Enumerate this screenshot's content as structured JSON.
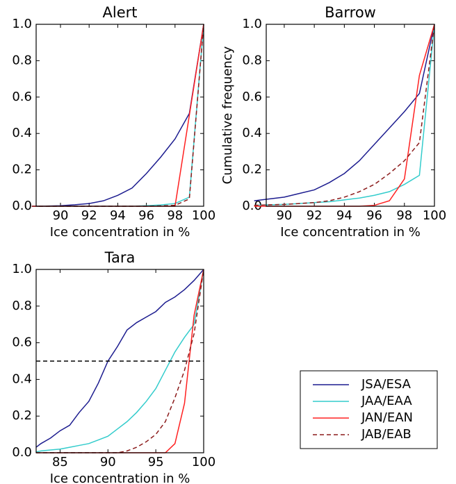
{
  "chart_data": [
    {
      "type": "line",
      "title": "Alert",
      "xlabel": "Ice concentration in %",
      "x": [
        88,
        89,
        90,
        91,
        92,
        93,
        94,
        95,
        96,
        97,
        98,
        99,
        100
      ],
      "series": [
        {
          "color": "#1c1c8f",
          "values": [
            0,
            0.001,
            0.003,
            0.008,
            0.015,
            0.03,
            0.06,
            0.1,
            0.18,
            0.27,
            0.37,
            0.51,
            1.0
          ]
        },
        {
          "color": "#33cccc",
          "values": [
            0,
            0,
            0,
            0,
            0,
            0,
            0,
            0,
            0.003,
            0.007,
            0.015,
            0.05,
            1.0
          ]
        },
        {
          "color": "#ff2020",
          "values": [
            0,
            0,
            0,
            0,
            0,
            0,
            0,
            0,
            0,
            0,
            0.0,
            0.5,
            1.0
          ]
        },
        {
          "color": "#8b1a1a",
          "dashed": true,
          "values": [
            0,
            0,
            0,
            0,
            0,
            0,
            0,
            0,
            0,
            0.002,
            0.005,
            0.04,
            1.0
          ]
        }
      ],
      "xlim": [
        88.3,
        100
      ],
      "xticks": [
        90,
        92,
        94,
        96,
        98,
        100
      ],
      "ylim": [
        0,
        1
      ],
      "yticks": [
        {
          "value": 0,
          "label": "0.0"
        },
        0.2,
        0.4,
        0.6,
        0.8,
        {
          "value": 1,
          "label": "1.0"
        }
      ]
    },
    {
      "type": "line",
      "title": "Barrow",
      "xlabel": "Ice concentration in %",
      "ylabel": "Cumulative frequency",
      "x": [
        88,
        89,
        90,
        91,
        92,
        93,
        94,
        95,
        96,
        97,
        98,
        99,
        100
      ],
      "series": [
        {
          "color": "#1c1c8f",
          "values": [
            0.03,
            0.04,
            0.05,
            0.07,
            0.09,
            0.13,
            0.18,
            0.25,
            0.34,
            0.43,
            0.52,
            0.62,
            1.0
          ]
        },
        {
          "color": "#33cccc",
          "values": [
            0.005,
            0.008,
            0.01,
            0.015,
            0.02,
            0.025,
            0.035,
            0.045,
            0.06,
            0.08,
            0.12,
            0.17,
            1.0
          ]
        },
        {
          "color": "#ff2020",
          "values": [
            0,
            0,
            0,
            0,
            0,
            0,
            0,
            0,
            0.005,
            0.03,
            0.15,
            0.72,
            1.0
          ]
        },
        {
          "color": "#8b1a1a",
          "dashed": true,
          "values": [
            0.005,
            0.008,
            0.01,
            0.015,
            0.02,
            0.03,
            0.05,
            0.08,
            0.12,
            0.18,
            0.25,
            0.35,
            1.0
          ]
        }
      ],
      "xlim": [
        88.8,
        100
      ],
      "xticks": [
        90,
        92,
        94,
        96,
        98,
        100
      ],
      "ylim": [
        0,
        1
      ],
      "yticks": [
        {
          "value": 0,
          "label": "0.0"
        },
        0.2,
        0.4,
        0.6,
        0.8,
        {
          "value": 1,
          "label": "1.0"
        }
      ]
    },
    {
      "type": "line",
      "title": "Tara",
      "xlabel": "Ice concentration in %",
      "x": [
        82.5,
        83,
        84,
        85,
        86,
        87,
        88,
        89,
        90,
        91,
        92,
        93,
        94,
        95,
        96,
        97,
        98,
        99,
        100
      ],
      "series": [
        {
          "name": "JSA/ESA",
          "color": "#1c1c8f",
          "values": [
            0.03,
            0.05,
            0.08,
            0.12,
            0.15,
            0.22,
            0.28,
            0.38,
            0.5,
            0.58,
            0.67,
            0.71,
            0.74,
            0.77,
            0.82,
            0.85,
            0.89,
            0.94,
            1.0
          ]
        },
        {
          "name": "JAA/EAA",
          "color": "#33cccc",
          "values": [
            0.005,
            0.01,
            0.015,
            0.02,
            0.03,
            0.04,
            0.05,
            0.07,
            0.09,
            0.13,
            0.17,
            0.22,
            0.28,
            0.35,
            0.45,
            0.55,
            0.63,
            0.7,
            1.0
          ]
        },
        {
          "name": "JAN/EAN",
          "color": "#ff2020",
          "values": [
            0,
            0,
            0,
            0,
            0,
            0,
            0,
            0,
            0,
            0,
            0,
            0,
            0,
            0,
            0,
            0.05,
            0.27,
            0.75,
            1.0
          ]
        },
        {
          "name": "JAB/EAB",
          "color": "#8b1a1a",
          "dashed": true,
          "values": [
            0,
            0,
            0,
            0,
            0,
            0,
            0,
            0,
            0,
            0,
            0.01,
            0.03,
            0.06,
            0.1,
            0.17,
            0.3,
            0.45,
            0.65,
            1.0
          ]
        }
      ],
      "hline": 0.5,
      "legend": true,
      "xlim": [
        82.5,
        100
      ],
      "xticks": [
        85,
        90,
        95,
        100
      ],
      "ylim": [
        0,
        1
      ],
      "yticks": [
        {
          "value": 0,
          "label": "0.0"
        },
        0.2,
        0.4,
        0.6,
        0.8,
        {
          "value": 1,
          "label": "1.0"
        }
      ]
    }
  ]
}
